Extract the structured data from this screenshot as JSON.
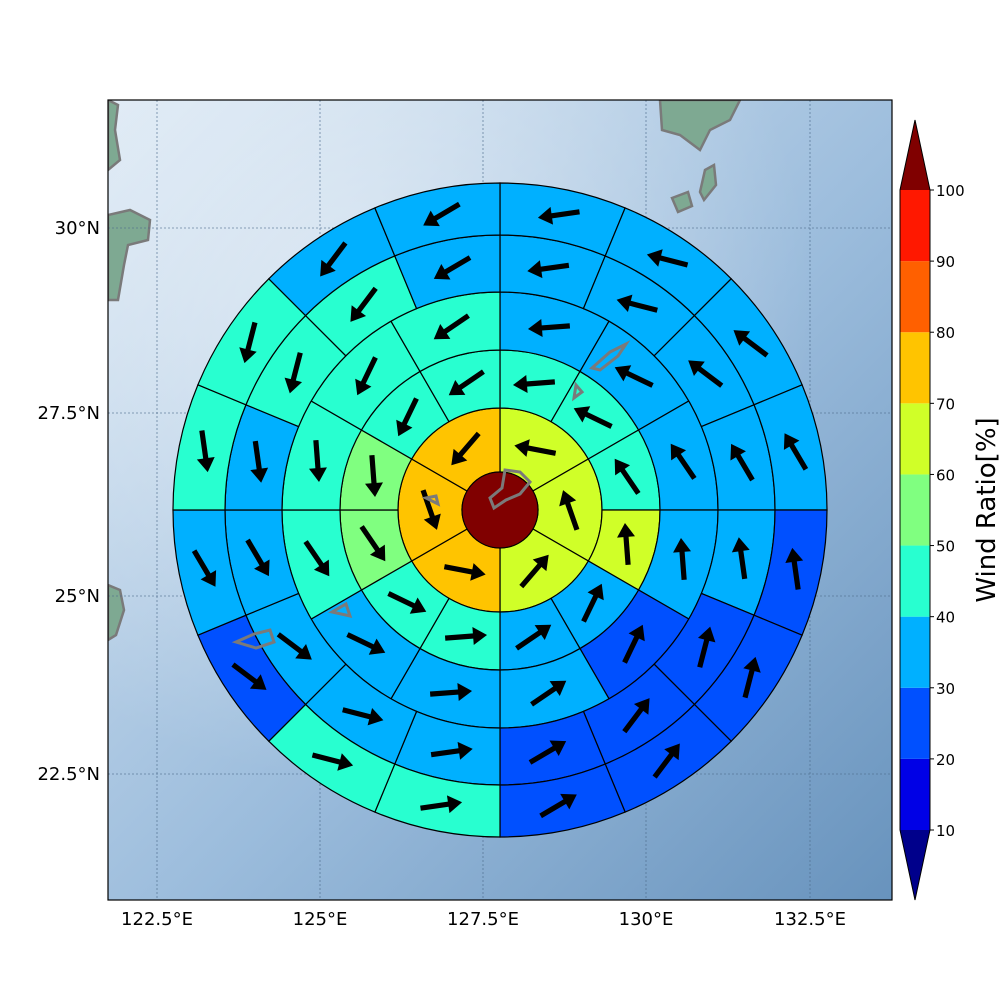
{
  "chart_data": {
    "type": "polar-sector-map",
    "description": "Wind ratio in concentric sectors around a storm center with wind-direction arrows",
    "x_ticks": [
      "122.5°E",
      "125°E",
      "127.5°E",
      "130°E",
      "132.5°E"
    ],
    "y_ticks": [
      "30°N",
      "27.5°N",
      "25°N",
      "22.5°N"
    ],
    "colorbar": {
      "label": "Wind Ratio[%]",
      "ticks": [
        "10",
        "20",
        "30",
        "40",
        "50",
        "60",
        "70",
        "80",
        "90",
        "100"
      ],
      "levels": [
        10,
        20,
        30,
        40,
        50,
        60,
        70,
        80,
        90,
        100
      ],
      "colors": [
        "#0000e6",
        "#0050ff",
        "#00b0ff",
        "#28ffd0",
        "#80ff80",
        "#d0ff28",
        "#ffc400",
        "#ff6000",
        "#ff1800"
      ],
      "under_color": "#00008b",
      "over_color": "#800000",
      "extend": "both"
    },
    "center": {
      "lon": 127.5,
      "lat": 26.2,
      "value": 100
    },
    "rings": [
      {
        "ring": 1,
        "sectors_deg": 60,
        "start_deg": 0,
        "values": [
          65,
          65,
          65,
          75,
          75,
          75
        ]
      },
      {
        "ring": 2,
        "sectors_deg": 30,
        "start_deg": 0,
        "values": [
          45,
          45,
          45,
          65,
          35,
          35,
          45,
          45,
          55,
          55,
          45,
          45
        ]
      },
      {
        "ring": 3,
        "sectors_deg": 30,
        "start_deg": 0,
        "values": [
          35,
          35,
          35,
          35,
          25,
          35,
          35,
          35,
          45,
          45,
          45,
          45
        ]
      },
      {
        "ring": 4,
        "sectors_deg": 22.5,
        "start_deg": 0,
        "values": [
          35,
          35,
          35,
          35,
          35,
          25,
          25,
          25,
          35,
          35,
          35,
          35,
          35,
          45,
          45,
          35
        ]
      },
      {
        "ring": 5,
        "sectors_deg": 22.5,
        "start_deg": 0,
        "values": [
          35,
          35,
          35,
          35,
          25,
          25,
          25,
          25,
          45,
          45,
          25,
          35,
          45,
          45,
          35,
          35
        ]
      }
    ],
    "grid": true
  },
  "colors": {
    "ocean_light": "#d4e3f1",
    "ocean_dark": "#6f9cc6",
    "land": "#7aa890",
    "coast": "#777777",
    "grid": "#4a6a8a"
  }
}
